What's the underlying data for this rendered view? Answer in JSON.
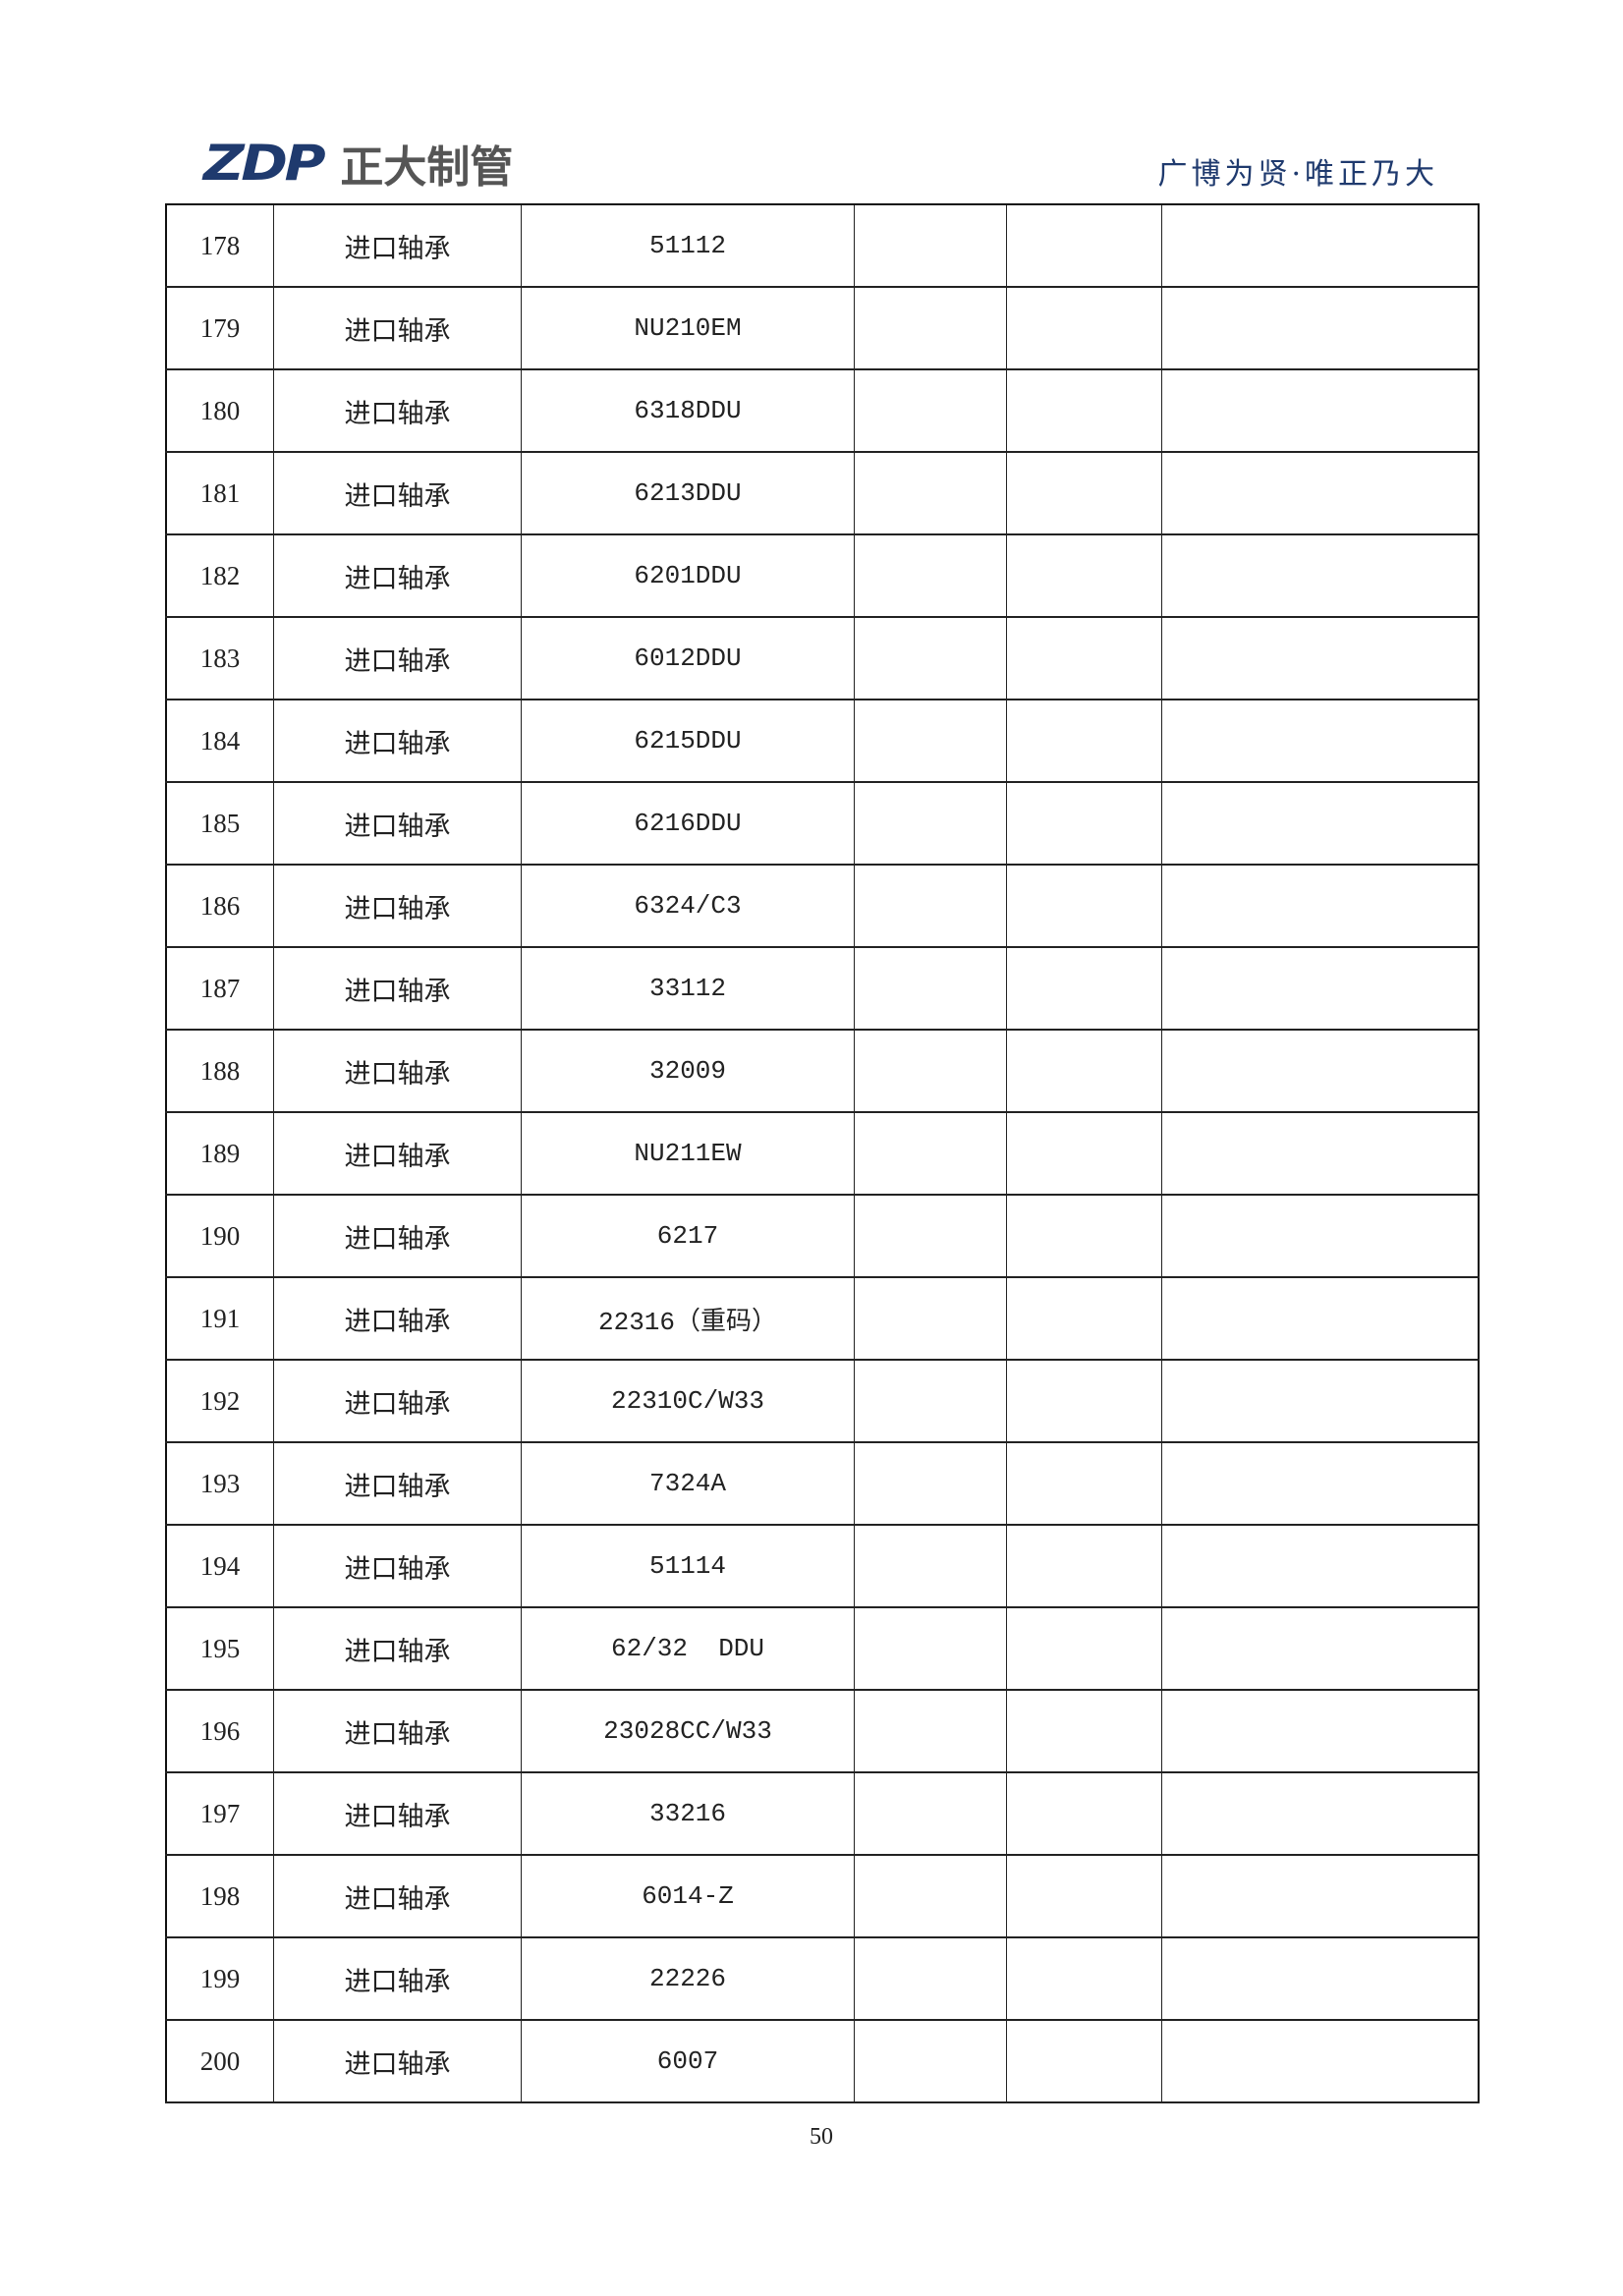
{
  "header": {
    "logo_mark": "ZDP",
    "logo_text": "正大制管",
    "motto": "广博为贤·唯正乃大",
    "brand_color": "#1f3a6e"
  },
  "table": {
    "rows": [
      {
        "no": "178",
        "name": "进口轴承",
        "model": "51112"
      },
      {
        "no": "179",
        "name": "进口轴承",
        "model": "NU210EM"
      },
      {
        "no": "180",
        "name": "进口轴承",
        "model": "6318DDU"
      },
      {
        "no": "181",
        "name": "进口轴承",
        "model": "6213DDU"
      },
      {
        "no": "182",
        "name": "进口轴承",
        "model": "6201DDU"
      },
      {
        "no": "183",
        "name": "进口轴承",
        "model": "6012DDU"
      },
      {
        "no": "184",
        "name": "进口轴承",
        "model": "6215DDU"
      },
      {
        "no": "185",
        "name": "进口轴承",
        "model": "6216DDU"
      },
      {
        "no": "186",
        "name": "进口轴承",
        "model": "6324/C3"
      },
      {
        "no": "187",
        "name": "进口轴承",
        "model": "33112"
      },
      {
        "no": "188",
        "name": "进口轴承",
        "model": "32009"
      },
      {
        "no": "189",
        "name": "进口轴承",
        "model": "NU211EW"
      },
      {
        "no": "190",
        "name": "进口轴承",
        "model": "6217"
      },
      {
        "no": "191",
        "name": "进口轴承",
        "model": "22316（重码）"
      },
      {
        "no": "192",
        "name": "进口轴承",
        "model": "22310C/W33"
      },
      {
        "no": "193",
        "name": "进口轴承",
        "model": "7324A"
      },
      {
        "no": "194",
        "name": "进口轴承",
        "model": "51114"
      },
      {
        "no": "195",
        "name": "进口轴承",
        "model": "62/32  DDU"
      },
      {
        "no": "196",
        "name": "进口轴承",
        "model": "23028CC/W33"
      },
      {
        "no": "197",
        "name": "进口轴承",
        "model": "33216"
      },
      {
        "no": "198",
        "name": "进口轴承",
        "model": "6014-Z"
      },
      {
        "no": "199",
        "name": "进口轴承",
        "model": "22226"
      },
      {
        "no": "200",
        "name": "进口轴承",
        "model": "6007"
      }
    ]
  },
  "footer": {
    "page_number": "50"
  }
}
